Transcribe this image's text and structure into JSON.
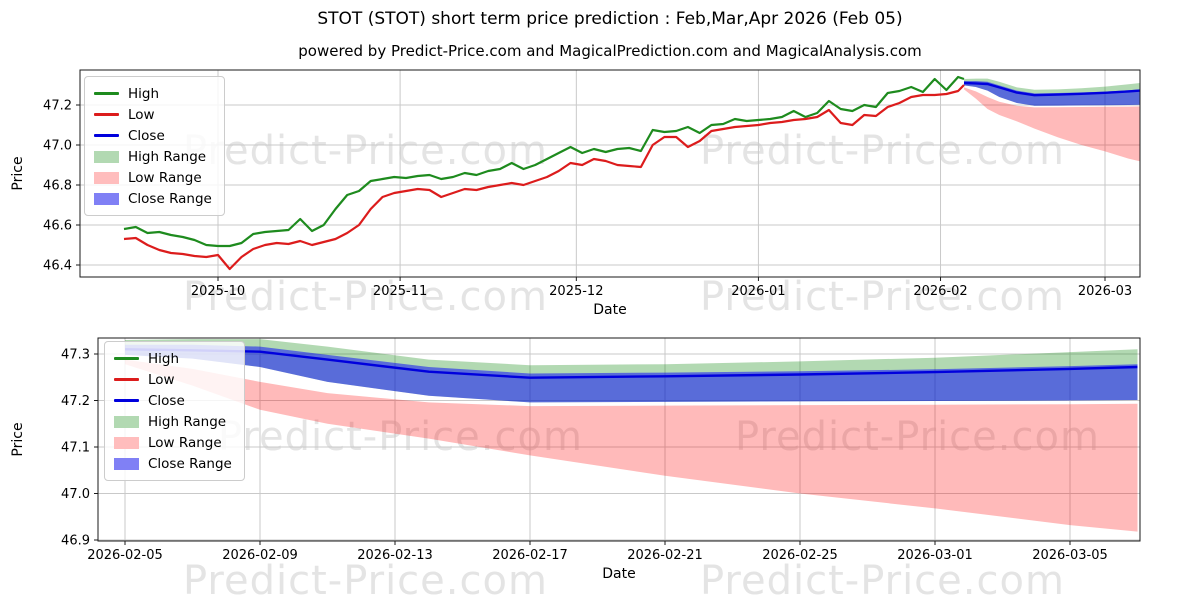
{
  "title": "STOT (STOT) short term price prediction : Feb,Mar,Apr 2026 (Feb 05)",
  "subtitle": "powered by Predict-Price.com and MagicalPrediction.com and MagicalAnalysis.com",
  "watermark": {
    "text": "Predict-Price.com"
  },
  "colors": {
    "high_line": "#1e8b1e",
    "low_line": "#dc1c1c",
    "close_line": "#0000dd",
    "high_range_fill": "#008000",
    "low_range_fill": "#ff0000",
    "close_range_fill": "#0000ff",
    "high_range_swatch": "#b2d9b2",
    "low_range_swatch": "#ffbdbd",
    "close_range_swatch": "#8080f5",
    "grid": "#c9c9c9",
    "axis": "#1a1a1a",
    "watermark": "#e4e4e4"
  },
  "legend": {
    "items": [
      {
        "label": "High",
        "type": "line",
        "color_key": "high_line"
      },
      {
        "label": "Low",
        "type": "line",
        "color_key": "low_line"
      },
      {
        "label": "Close",
        "type": "line",
        "color_key": "close_line"
      },
      {
        "label": "High Range",
        "type": "patch",
        "color_key": "high_range_swatch"
      },
      {
        "label": "Low Range",
        "type": "patch",
        "color_key": "low_range_swatch"
      },
      {
        "label": "Close Range",
        "type": "patch",
        "color_key": "close_range_swatch"
      }
    ]
  },
  "chart_data": [
    {
      "type": "line",
      "name": "price-history-with-prediction",
      "xlabel": "Date",
      "ylabel": "Price",
      "x_ticks": [
        "2025-10",
        "2025-11",
        "2025-12",
        "2026-01",
        "2026-02",
        "2026-03"
      ],
      "y_ticks": [
        46.4,
        46.6,
        46.8,
        47.0,
        47.2
      ],
      "ylim": [
        46.34,
        47.375
      ],
      "grid": true,
      "legend_position": "upper-left",
      "history": {
        "dates": [
          "2025-09-15",
          "2025-09-17",
          "2025-09-19",
          "2025-09-21",
          "2025-09-23",
          "2025-09-25",
          "2025-09-27",
          "2025-09-29",
          "2025-10-01",
          "2025-10-03",
          "2025-10-05",
          "2025-10-07",
          "2025-10-09",
          "2025-10-11",
          "2025-10-13",
          "2025-10-15",
          "2025-10-17",
          "2025-10-19",
          "2025-10-21",
          "2025-10-23",
          "2025-10-25",
          "2025-10-27",
          "2025-10-29",
          "2025-10-31",
          "2025-11-02",
          "2025-11-04",
          "2025-11-06",
          "2025-11-08",
          "2025-11-10",
          "2025-11-12",
          "2025-11-14",
          "2025-11-16",
          "2025-11-18",
          "2025-11-20",
          "2025-11-22",
          "2025-11-24",
          "2025-11-26",
          "2025-11-28",
          "2025-11-30",
          "2025-12-02",
          "2025-12-04",
          "2025-12-06",
          "2025-12-08",
          "2025-12-10",
          "2025-12-12",
          "2025-12-14",
          "2025-12-16",
          "2025-12-18",
          "2025-12-20",
          "2025-12-22",
          "2025-12-24",
          "2025-12-26",
          "2025-12-28",
          "2025-12-30",
          "2026-01-01",
          "2026-01-03",
          "2026-01-05",
          "2026-01-07",
          "2026-01-09",
          "2026-01-11",
          "2026-01-13",
          "2026-01-15",
          "2026-01-17",
          "2026-01-19",
          "2026-01-21",
          "2026-01-23",
          "2026-01-25",
          "2026-01-27",
          "2026-01-29",
          "2026-01-31",
          "2026-02-02",
          "2026-02-04",
          "2026-02-05"
        ],
        "high": [
          46.58,
          46.59,
          46.56,
          46.565,
          46.55,
          46.54,
          46.525,
          46.5,
          46.495,
          46.495,
          46.51,
          46.555,
          46.565,
          46.57,
          46.575,
          46.63,
          46.57,
          46.6,
          46.68,
          46.75,
          46.77,
          46.82,
          46.83,
          46.84,
          46.835,
          46.845,
          46.85,
          46.83,
          46.84,
          46.86,
          46.85,
          46.87,
          46.88,
          46.91,
          46.88,
          46.9,
          46.93,
          46.96,
          46.99,
          46.96,
          46.98,
          46.965,
          46.98,
          46.985,
          46.97,
          47.075,
          47.065,
          47.07,
          47.09,
          47.06,
          47.1,
          47.105,
          47.13,
          47.12,
          47.125,
          47.13,
          47.14,
          47.17,
          47.14,
          47.16,
          47.22,
          47.18,
          47.17,
          47.2,
          47.19,
          47.26,
          47.27,
          47.29,
          47.265,
          47.33,
          47.275,
          47.34,
          47.33
        ],
        "low": [
          46.53,
          46.535,
          46.5,
          46.475,
          46.46,
          46.455,
          46.445,
          46.44,
          46.45,
          46.38,
          46.44,
          46.48,
          46.5,
          46.51,
          46.505,
          46.52,
          46.5,
          46.515,
          46.53,
          46.56,
          46.6,
          46.68,
          46.74,
          46.76,
          46.77,
          46.78,
          46.775,
          46.74,
          46.76,
          46.78,
          46.775,
          46.79,
          46.8,
          46.81,
          46.8,
          46.82,
          46.84,
          46.87,
          46.91,
          46.9,
          46.93,
          46.92,
          46.9,
          46.895,
          46.89,
          47.0,
          47.04,
          47.04,
          46.99,
          47.02,
          47.07,
          47.08,
          47.09,
          47.095,
          47.1,
          47.11,
          47.115,
          47.125,
          47.13,
          47.14,
          47.175,
          47.11,
          47.1,
          47.15,
          47.145,
          47.19,
          47.21,
          47.24,
          47.25,
          47.25,
          47.255,
          47.27,
          47.3
        ]
      },
      "prediction": {
        "dates": [
          "2026-02-05",
          "2026-02-07",
          "2026-02-09",
          "2026-02-11",
          "2026-02-14",
          "2026-02-17",
          "2026-02-21",
          "2026-02-25",
          "2026-03-01",
          "2026-03-05",
          "2026-03-07"
        ],
        "close": [
          47.31,
          47.308,
          47.305,
          47.288,
          47.262,
          47.249,
          47.252,
          47.256,
          47.261,
          47.268,
          47.272
        ],
        "high_range_top": [
          47.33,
          47.332,
          47.332,
          47.316,
          47.288,
          47.276,
          47.278,
          47.284,
          47.292,
          47.304,
          47.31
        ],
        "close_range_top": [
          47.32,
          47.32,
          47.316,
          47.298,
          47.272,
          47.258,
          47.26,
          47.263,
          47.267,
          47.274,
          47.278
        ],
        "close_range_bottom": [
          47.298,
          47.29,
          47.272,
          47.24,
          47.21,
          47.196,
          47.197,
          47.198,
          47.199,
          47.2,
          47.201
        ],
        "low_range_top": [
          47.288,
          47.268,
          47.24,
          47.216,
          47.196,
          47.188,
          47.189,
          47.19,
          47.191,
          47.192,
          47.193
        ],
        "low_range_bottom": [
          47.278,
          47.232,
          47.18,
          47.15,
          47.118,
          47.082,
          47.038,
          47.0,
          46.968,
          46.932,
          46.918
        ]
      }
    },
    {
      "type": "line",
      "name": "prediction-detail",
      "xlabel": "Date",
      "ylabel": "Price",
      "x_ticks": [
        "2026-02-05",
        "2026-02-09",
        "2026-02-13",
        "2026-02-17",
        "2026-02-21",
        "2026-02-25",
        "2026-03-01",
        "2026-03-05"
      ],
      "y_ticks": [
        46.9,
        47.0,
        47.1,
        47.2,
        47.3
      ],
      "ylim": [
        46.898,
        47.334
      ],
      "grid": true,
      "legend_position": "upper-left",
      "prediction": {
        "dates": [
          "2026-02-05",
          "2026-02-07",
          "2026-02-09",
          "2026-02-11",
          "2026-02-14",
          "2026-02-17",
          "2026-02-21",
          "2026-02-25",
          "2026-03-01",
          "2026-03-05",
          "2026-03-07"
        ],
        "close": [
          47.31,
          47.308,
          47.305,
          47.288,
          47.262,
          47.249,
          47.252,
          47.256,
          47.261,
          47.268,
          47.272
        ],
        "high_range_top": [
          47.33,
          47.332,
          47.332,
          47.316,
          47.288,
          47.276,
          47.278,
          47.284,
          47.292,
          47.304,
          47.31
        ],
        "close_range_top": [
          47.32,
          47.32,
          47.316,
          47.298,
          47.272,
          47.258,
          47.26,
          47.263,
          47.267,
          47.274,
          47.278
        ],
        "close_range_bottom": [
          47.298,
          47.29,
          47.272,
          47.24,
          47.21,
          47.196,
          47.197,
          47.198,
          47.199,
          47.2,
          47.201
        ],
        "low_range_top": [
          47.288,
          47.268,
          47.24,
          47.216,
          47.196,
          47.188,
          47.189,
          47.19,
          47.191,
          47.192,
          47.193
        ],
        "low_range_bottom": [
          47.278,
          47.232,
          47.18,
          47.15,
          47.118,
          47.082,
          47.038,
          47.0,
          46.968,
          46.932,
          46.918
        ]
      }
    }
  ]
}
